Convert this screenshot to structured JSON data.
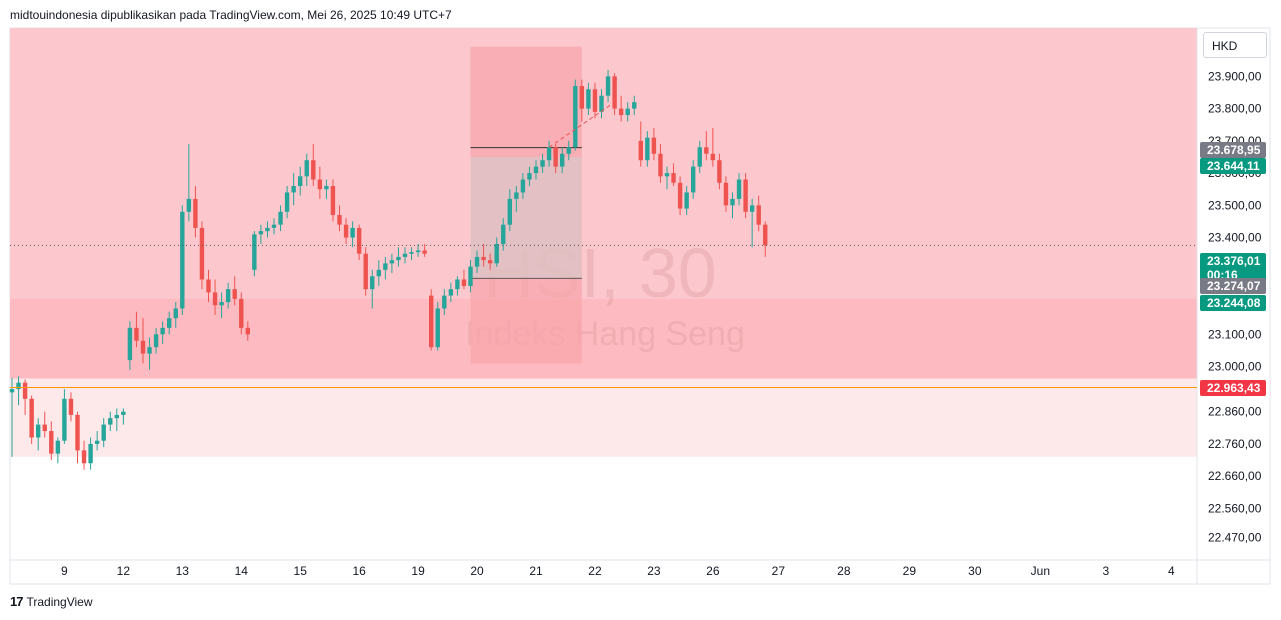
{
  "header": {
    "text": "midtouindonesia dipublikasikan pada TradingView.com, Mei 26, 2025 10:49 UTC+7"
  },
  "currency": "HKD",
  "footer": {
    "logo_mark": "17",
    "logo_text": "TradingView"
  },
  "watermark": {
    "symbol": "HSI, 30",
    "name": "Indeks Hang Seng"
  },
  "colors": {
    "up": "#26a69a",
    "down": "#ef5350",
    "zone_main": "#fcc8cd",
    "zone_lower": "#fdbac0",
    "zone_light": "#fde8ea",
    "box": "#f7a5ab",
    "orange_line": "#ff9800",
    "badge_gray": "#787b86",
    "badge_green": "#089981",
    "badge_red": "#f23645"
  },
  "chart_data": {
    "type": "candlestick",
    "y_range": [
      22400,
      24050
    ],
    "y_ticks": [
      "23.900,00",
      "23.800,00",
      "23.700,00",
      "23.600,00",
      "23.500,00",
      "23.400,00",
      "23.300,00",
      "23.200,00",
      "23.100,00",
      "23.000,00",
      "22.860,00",
      "22.760,00",
      "22.660,00",
      "22.560,00",
      "22.470,00"
    ],
    "y_tick_values": [
      23900,
      23800,
      23700,
      23600,
      23500,
      23400,
      23300,
      23200,
      23100,
      23000,
      22860,
      22760,
      22660,
      22560,
      22470
    ],
    "x_ticks": [
      "9",
      "12",
      "13",
      "14",
      "15",
      "16",
      "19",
      "20",
      "21",
      "22",
      "23",
      "26",
      "27",
      "28",
      "29",
      "30",
      "Jun",
      "3",
      "4"
    ],
    "x_tick_index": [
      8,
      17,
      26,
      35,
      44,
      53,
      62,
      71,
      80,
      89,
      98,
      107,
      117,
      127,
      137,
      147,
      157,
      167,
      177
    ],
    "candles_ohlc": [
      [
        22920,
        22965,
        22720,
        22930
      ],
      [
        22930,
        22970,
        22880,
        22950
      ],
      [
        22950,
        22960,
        22850,
        22900
      ],
      [
        22900,
        22910,
        22760,
        22780
      ],
      [
        22780,
        22840,
        22740,
        22820
      ],
      [
        22820,
        22860,
        22780,
        22800
      ],
      [
        22800,
        22830,
        22710,
        22730
      ],
      [
        22730,
        22780,
        22700,
        22770
      ],
      [
        22770,
        22930,
        22760,
        22900
      ],
      [
        22900,
        22920,
        22830,
        22850
      ],
      [
        22850,
        22860,
        22700,
        22740
      ],
      [
        22740,
        22770,
        22680,
        22700
      ],
      [
        22700,
        22780,
        22680,
        22760
      ],
      [
        22760,
        22800,
        22740,
        22770
      ],
      [
        22770,
        22840,
        22750,
        22820
      ],
      [
        22820,
        22860,
        22800,
        22840
      ],
      [
        22840,
        22870,
        22800,
        22850
      ],
      [
        22850,
        22870,
        22820,
        22860
      ],
      [
        23020,
        23140,
        22990,
        23120
      ],
      [
        23120,
        23170,
        23060,
        23080
      ],
      [
        23080,
        23150,
        23010,
        23040
      ],
      [
        23040,
        23090,
        22990,
        23060
      ],
      [
        23060,
        23120,
        23040,
        23100
      ],
      [
        23100,
        23140,
        23070,
        23120
      ],
      [
        23120,
        23170,
        23100,
        23150
      ],
      [
        23150,
        23200,
        23120,
        23180
      ],
      [
        23180,
        23500,
        23160,
        23480
      ],
      [
        23480,
        23690,
        23450,
        23520
      ],
      [
        23520,
        23560,
        23400,
        23430
      ],
      [
        23430,
        23450,
        23240,
        23270
      ],
      [
        23270,
        23300,
        23200,
        23230
      ],
      [
        23230,
        23270,
        23160,
        23190
      ],
      [
        23190,
        23230,
        23150,
        23200
      ],
      [
        23200,
        23260,
        23180,
        23240
      ],
      [
        23240,
        23280,
        23190,
        23210
      ],
      [
        23210,
        23230,
        23100,
        23120
      ],
      [
        23120,
        23140,
        23080,
        23100
      ],
      [
        23300,
        23420,
        23280,
        23410
      ],
      [
        23410,
        23440,
        23380,
        23420
      ],
      [
        23420,
        23450,
        23400,
        23430
      ],
      [
        23430,
        23460,
        23410,
        23440
      ],
      [
        23440,
        23500,
        23420,
        23480
      ],
      [
        23480,
        23560,
        23460,
        23540
      ],
      [
        23540,
        23600,
        23500,
        23560
      ],
      [
        23560,
        23620,
        23530,
        23590
      ],
      [
        23590,
        23660,
        23560,
        23640
      ],
      [
        23640,
        23690,
        23560,
        23580
      ],
      [
        23580,
        23620,
        23520,
        23550
      ],
      [
        23550,
        23580,
        23520,
        23560
      ],
      [
        23560,
        23580,
        23450,
        23470
      ],
      [
        23470,
        23500,
        23420,
        23440
      ],
      [
        23440,
        23460,
        23380,
        23400
      ],
      [
        23400,
        23450,
        23370,
        23430
      ],
      [
        23430,
        23440,
        23330,
        23350
      ],
      [
        23350,
        23370,
        23220,
        23240
      ],
      [
        23240,
        23300,
        23180,
        23280
      ],
      [
        23280,
        23330,
        23250,
        23300
      ],
      [
        23300,
        23340,
        23270,
        23320
      ],
      [
        23320,
        23350,
        23290,
        23330
      ],
      [
        23330,
        23370,
        23310,
        23340
      ],
      [
        23340,
        23370,
        23320,
        23350
      ],
      [
        23350,
        23370,
        23330,
        23355
      ],
      [
        23355,
        23380,
        23340,
        23360
      ],
      [
        23360,
        23380,
        23340,
        23350
      ],
      [
        23220,
        23240,
        23050,
        23060
      ],
      [
        23060,
        23200,
        23050,
        23180
      ],
      [
        23180,
        23240,
        23160,
        23220
      ],
      [
        23220,
        23260,
        23200,
        23240
      ],
      [
        23240,
        23280,
        23220,
        23270
      ],
      [
        23270,
        23300,
        23240,
        23250
      ],
      [
        23250,
        23330,
        23230,
        23310
      ],
      [
        23310,
        23360,
        23290,
        23340
      ],
      [
        23340,
        23380,
        23310,
        23330
      ],
      [
        23330,
        23350,
        23300,
        23320
      ],
      [
        23320,
        23400,
        23310,
        23380
      ],
      [
        23380,
        23460,
        23360,
        23440
      ],
      [
        23440,
        23550,
        23420,
        23520
      ],
      [
        23520,
        23560,
        23480,
        23540
      ],
      [
        23540,
        23600,
        23520,
        23580
      ],
      [
        23580,
        23620,
        23560,
        23600
      ],
      [
        23600,
        23640,
        23580,
        23620
      ],
      [
        23620,
        23660,
        23600,
        23640
      ],
      [
        23640,
        23700,
        23620,
        23680
      ],
      [
        23680,
        23690,
        23600,
        23620
      ],
      [
        23620,
        23680,
        23600,
        23660
      ],
      [
        23660,
        23700,
        23640,
        23680
      ],
      [
        23680,
        23890,
        23670,
        23870
      ],
      [
        23870,
        23890,
        23760,
        23800
      ],
      [
        23800,
        23880,
        23780,
        23860
      ],
      [
        23860,
        23880,
        23770,
        23790
      ],
      [
        23790,
        23860,
        23770,
        23840
      ],
      [
        23840,
        23920,
        23820,
        23900
      ],
      [
        23900,
        23910,
        23780,
        23800
      ],
      [
        23800,
        23840,
        23760,
        23780
      ],
      [
        23780,
        23820,
        23760,
        23800
      ],
      [
        23800,
        23840,
        23780,
        23820
      ],
      [
        23700,
        23760,
        23620,
        23640
      ],
      [
        23640,
        23730,
        23620,
        23710
      ],
      [
        23710,
        23740,
        23640,
        23660
      ],
      [
        23660,
        23690,
        23570,
        23590
      ],
      [
        23590,
        23620,
        23550,
        23600
      ],
      [
        23600,
        23630,
        23560,
        23570
      ],
      [
        23570,
        23590,
        23470,
        23490
      ],
      [
        23490,
        23560,
        23470,
        23540
      ],
      [
        23540,
        23640,
        23520,
        23620
      ],
      [
        23620,
        23700,
        23600,
        23680
      ],
      [
        23680,
        23730,
        23640,
        23660
      ],
      [
        23660,
        23740,
        23620,
        23640
      ],
      [
        23640,
        23660,
        23550,
        23570
      ],
      [
        23570,
        23590,
        23480,
        23500
      ],
      [
        23500,
        23540,
        23460,
        23520
      ],
      [
        23520,
        23600,
        23500,
        23580
      ],
      [
        23580,
        23600,
        23460,
        23480
      ],
      [
        23480,
        23520,
        23370,
        23500
      ],
      [
        23500,
        23530,
        23420,
        23440
      ],
      [
        23440,
        23450,
        23340,
        23376
      ]
    ],
    "price_badges": [
      {
        "label": "23.678,95",
        "value": 23679,
        "color": "badge_gray"
      },
      {
        "label": "23.644,11",
        "value": 23644,
        "color": "badge_green"
      },
      {
        "label": "23.376,01",
        "value": 23376,
        "color": "badge_green",
        "sub": "00:16"
      },
      {
        "label": "23.274,07",
        "value": 23274,
        "color": "badge_gray"
      },
      {
        "label": "23.244,08",
        "value": 23244,
        "color": "badge_green"
      },
      {
        "label": "22.963,43",
        "value": 22963,
        "color": "badge_red"
      }
    ],
    "last_price": 23376,
    "orange_line": 22935,
    "zones": [
      {
        "from": 22963,
        "to": 24050,
        "color": "zone_main"
      },
      {
        "from": 22963,
        "to": 23210,
        "color": "zone_lower"
      },
      {
        "from": 22720,
        "to": 22963,
        "color": "zone_light"
      }
    ],
    "box": {
      "from_index": 70,
      "to_index": 87,
      "low": 23010,
      "high": 23992
    },
    "box_lines": [
      23679,
      23274
    ]
  }
}
